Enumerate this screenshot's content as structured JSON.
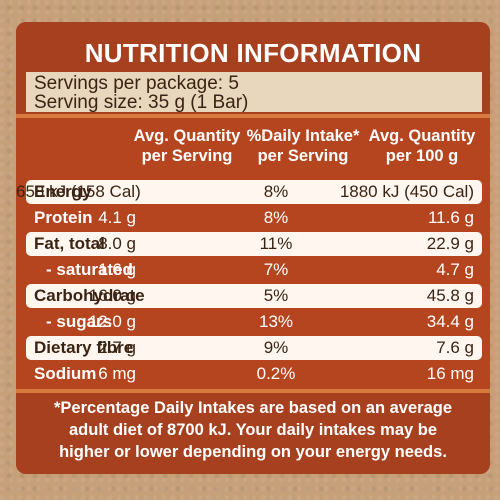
{
  "title": "NUTRITION INFORMATION",
  "servings": {
    "per_package": "Servings per package: 5",
    "serving_size": "Serving size: 35 g (1 Bar)"
  },
  "headers": {
    "col1": [
      "Avg. Quantity",
      "per Serving"
    ],
    "col2": [
      "%Daily Intake*",
      "per Serving"
    ],
    "col3": [
      "Avg. Quantity",
      "per 100 g"
    ]
  },
  "rows": [
    {
      "name": "Energy",
      "per_serving": "658 kJ (158 Cal)",
      "daily_intake": "8%",
      "per_100g": "1880 kJ (450 Cal)"
    },
    {
      "name": "Protein",
      "per_serving": "4.1 g",
      "daily_intake": "8%",
      "per_100g": "11.6 g"
    },
    {
      "name": "Fat, total",
      "per_serving": "8.0 g",
      "daily_intake": "11%",
      "per_100g": "22.9 g"
    },
    {
      "name": "- saturated",
      "per_serving": "1.6 g",
      "daily_intake": "7%",
      "per_100g": "4.7 g"
    },
    {
      "name": "Carbohydrate",
      "per_serving": "16.0 g",
      "daily_intake": "5%",
      "per_100g": "45.8 g"
    },
    {
      "name": "- sugars",
      "per_serving": "12.0 g",
      "daily_intake": "13%",
      "per_100g": "34.4 g"
    },
    {
      "name": "Dietary fibre",
      "per_serving": "2.7 g",
      "daily_intake": "9%",
      "per_100g": "7.6 g"
    },
    {
      "name": "Sodium",
      "per_serving": "6 mg",
      "daily_intake": "0.2%",
      "per_100g": "16 mg"
    }
  ],
  "footnote": [
    "*Percentage Daily Intakes are based on an average",
    "adult diet of 8700 kJ. Your daily intakes may be",
    "higher or lower depending on your energy needs."
  ],
  "colors": {
    "panel": "#b5451f",
    "band": "#a7401f",
    "light_row": "#fff7ef",
    "paper": "#c6a079"
  }
}
